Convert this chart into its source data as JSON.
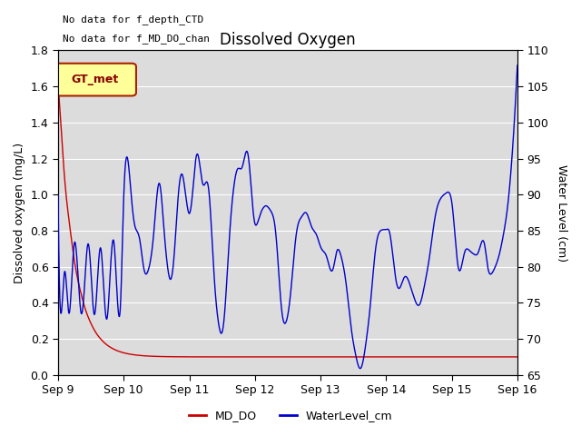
{
  "title": "Dissolved Oxygen",
  "ylabel_left": "Dissolved oxygen (mg/L)",
  "ylabel_right": "Water Level (cm)",
  "annotation_lines": [
    "No data for f_depth_CTD",
    "No data for f_MD_DO_chan"
  ],
  "gt_met_label": "GT_met",
  "legend_entries": [
    "MD_DO",
    "WaterLevel_cm"
  ],
  "legend_colors": [
    "#cc0000",
    "#0000cc"
  ],
  "ylim_left": [
    0.0,
    1.8
  ],
  "ylim_right": [
    65,
    110
  ],
  "yticks_left": [
    0.0,
    0.2,
    0.4,
    0.6,
    0.8,
    1.0,
    1.2,
    1.4,
    1.6,
    1.8
  ],
  "yticks_right": [
    65,
    70,
    75,
    80,
    85,
    90,
    95,
    100,
    105,
    110
  ],
  "background_color": "#dcdcdc",
  "figure_facecolor": "#ffffff",
  "grid_color": "#ffffff",
  "xtick_labels": [
    "Sep 9",
    "Sep 10",
    "Sep 11",
    "Sep 12",
    "Sep 13",
    "Sep 14",
    "Sep 15",
    "Sep 16"
  ],
  "xtick_positions": [
    0,
    1,
    2,
    3,
    4,
    5,
    6,
    7
  ]
}
